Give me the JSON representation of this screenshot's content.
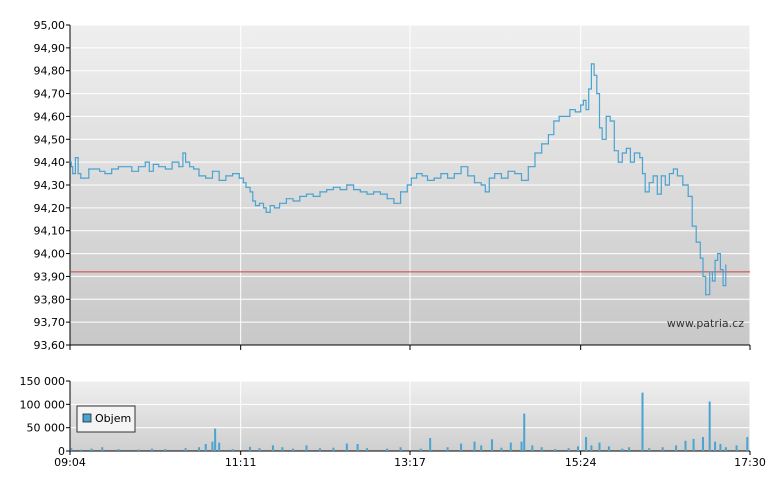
{
  "chart_data": [
    {
      "type": "line",
      "title": "",
      "xlabel": "",
      "ylabel": "",
      "ylim": [
        93.6,
        95.0
      ],
      "y_ticks": [
        "93,60",
        "93,70",
        "93,80",
        "93,90",
        "94,00",
        "94,10",
        "94,20",
        "94,30",
        "94,40",
        "94,50",
        "94,60",
        "94,70",
        "94,80",
        "94,90",
        "95,00"
      ],
      "y_tick_values": [
        93.6,
        93.7,
        93.8,
        93.9,
        94.0,
        94.1,
        94.2,
        94.3,
        94.4,
        94.5,
        94.6,
        94.7,
        94.8,
        94.9,
        95.0
      ],
      "reference_line": 93.92,
      "watermark": "www.patria.cz",
      "series": [
        {
          "color": "#4aa3d0",
          "points": [
            [
              "09:04",
              94.4
            ],
            [
              "09:05",
              94.38
            ],
            [
              "09:06",
              94.35
            ],
            [
              "09:08",
              94.42
            ],
            [
              "09:10",
              94.35
            ],
            [
              "09:12",
              94.33
            ],
            [
              "09:15",
              94.33
            ],
            [
              "09:18",
              94.37
            ],
            [
              "09:22",
              94.37
            ],
            [
              "09:26",
              94.36
            ],
            [
              "09:30",
              94.35
            ],
            [
              "09:35",
              94.37
            ],
            [
              "09:40",
              94.38
            ],
            [
              "09:45",
              94.38
            ],
            [
              "09:50",
              94.36
            ],
            [
              "09:55",
              94.38
            ],
            [
              "10:00",
              94.4
            ],
            [
              "10:03",
              94.36
            ],
            [
              "10:06",
              94.39
            ],
            [
              "10:10",
              94.38
            ],
            [
              "10:15",
              94.37
            ],
            [
              "10:20",
              94.4
            ],
            [
              "10:25",
              94.38
            ],
            [
              "10:28",
              94.44
            ],
            [
              "10:30",
              94.4
            ],
            [
              "10:33",
              94.38
            ],
            [
              "10:36",
              94.37
            ],
            [
              "10:40",
              94.34
            ],
            [
              "10:45",
              94.33
            ],
            [
              "10:50",
              94.36
            ],
            [
              "10:55",
              94.32
            ],
            [
              "11:00",
              94.34
            ],
            [
              "11:05",
              94.35
            ],
            [
              "11:10",
              94.33
            ],
            [
              "11:13",
              94.31
            ],
            [
              "11:15",
              94.29
            ],
            [
              "11:18",
              94.27
            ],
            [
              "11:20",
              94.23
            ],
            [
              "11:22",
              94.21
            ],
            [
              "11:25",
              94.22
            ],
            [
              "11:28",
              94.2
            ],
            [
              "11:30",
              94.18
            ],
            [
              "11:33",
              94.21
            ],
            [
              "11:36",
              94.2
            ],
            [
              "11:40",
              94.22
            ],
            [
              "11:45",
              94.24
            ],
            [
              "11:50",
              94.23
            ],
            [
              "11:55",
              94.25
            ],
            [
              "12:00",
              94.26
            ],
            [
              "12:05",
              94.25
            ],
            [
              "12:10",
              94.27
            ],
            [
              "12:15",
              94.28
            ],
            [
              "12:20",
              94.29
            ],
            [
              "12:25",
              94.28
            ],
            [
              "12:30",
              94.3
            ],
            [
              "12:35",
              94.28
            ],
            [
              "12:40",
              94.27
            ],
            [
              "12:45",
              94.26
            ],
            [
              "12:50",
              94.27
            ],
            [
              "12:55",
              94.26
            ],
            [
              "13:00",
              94.24
            ],
            [
              "13:05",
              94.22
            ],
            [
              "13:10",
              94.27
            ],
            [
              "13:15",
              94.3
            ],
            [
              "13:18",
              94.33
            ],
            [
              "13:22",
              94.35
            ],
            [
              "13:26",
              94.34
            ],
            [
              "13:30",
              94.32
            ],
            [
              "13:35",
              94.33
            ],
            [
              "13:40",
              94.35
            ],
            [
              "13:45",
              94.33
            ],
            [
              "13:50",
              94.35
            ],
            [
              "13:55",
              94.38
            ],
            [
              "14:00",
              94.34
            ],
            [
              "14:05",
              94.31
            ],
            [
              "14:10",
              94.3
            ],
            [
              "14:13",
              94.27
            ],
            [
              "14:16",
              94.33
            ],
            [
              "14:20",
              94.35
            ],
            [
              "14:25",
              94.33
            ],
            [
              "14:30",
              94.36
            ],
            [
              "14:35",
              94.35
            ],
            [
              "14:40",
              94.32
            ],
            [
              "14:45",
              94.38
            ],
            [
              "14:50",
              94.44
            ],
            [
              "14:55",
              94.48
            ],
            [
              "15:00",
              94.52
            ],
            [
              "15:04",
              94.58
            ],
            [
              "15:08",
              94.6
            ],
            [
              "15:12",
              94.6
            ],
            [
              "15:16",
              94.63
            ],
            [
              "15:20",
              94.62
            ],
            [
              "15:24",
              94.65
            ],
            [
              "15:26",
              94.67
            ],
            [
              "15:28",
              94.63
            ],
            [
              "15:30",
              94.72
            ],
            [
              "15:32",
              94.83
            ],
            [
              "15:34",
              94.78
            ],
            [
              "15:36",
              94.7
            ],
            [
              "15:38",
              94.55
            ],
            [
              "15:40",
              94.5
            ],
            [
              "15:43",
              94.6
            ],
            [
              "15:46",
              94.58
            ],
            [
              "15:49",
              94.45
            ],
            [
              "15:52",
              94.4
            ],
            [
              "15:55",
              94.44
            ],
            [
              "15:58",
              94.46
            ],
            [
              "16:01",
              94.4
            ],
            [
              "16:04",
              94.44
            ],
            [
              "16:08",
              94.42
            ],
            [
              "16:10",
              94.35
            ],
            [
              "16:12",
              94.27
            ],
            [
              "16:15",
              94.31
            ],
            [
              "16:18",
              94.34
            ],
            [
              "16:21",
              94.26
            ],
            [
              "16:24",
              94.34
            ],
            [
              "16:27",
              94.3
            ],
            [
              "16:30",
              94.35
            ],
            [
              "16:33",
              94.37
            ],
            [
              "16:36",
              94.34
            ],
            [
              "16:40",
              94.3
            ],
            [
              "16:44",
              94.25
            ],
            [
              "16:47",
              94.12
            ],
            [
              "16:50",
              94.05
            ],
            [
              "16:53",
              93.98
            ],
            [
              "16:55",
              93.9
            ],
            [
              "16:57",
              93.82
            ],
            [
              "17:00",
              93.92
            ],
            [
              "17:02",
              93.88
            ],
            [
              "17:04",
              93.97
            ],
            [
              "17:06",
              94.0
            ],
            [
              "17:08",
              93.93
            ],
            [
              "17:10",
              93.86
            ],
            [
              "17:12",
              93.95
            ]
          ]
        }
      ]
    },
    {
      "type": "bar",
      "title": "",
      "xlabel": "",
      "ylabel": "",
      "ylim": [
        0,
        150000
      ],
      "y_ticks": [
        "0",
        "50 000",
        "100 000",
        "150 000"
      ],
      "y_tick_values": [
        0,
        50000,
        100000,
        150000
      ],
      "legend": {
        "label": "Objem",
        "color": "#4aa3d0",
        "placement": "left"
      },
      "x_ticks": [
        "09:04",
        "11:11",
        "13:17",
        "15:24",
        "17:30"
      ],
      "series": [
        {
          "name": "Objem",
          "color": "#4aa3d0",
          "points": [
            [
              "09:05",
              6000
            ],
            [
              "09:12",
              3000
            ],
            [
              "09:20",
              5000
            ],
            [
              "09:28",
              8000
            ],
            [
              "09:40",
              4000
            ],
            [
              "09:55",
              3000
            ],
            [
              "10:05",
              5000
            ],
            [
              "10:15",
              4000
            ],
            [
              "10:30",
              6000
            ],
            [
              "10:40",
              8000
            ],
            [
              "10:45",
              15000
            ],
            [
              "10:50",
              20000
            ],
            [
              "10:52",
              48000
            ],
            [
              "10:55",
              18000
            ],
            [
              "11:05",
              4000
            ],
            [
              "11:18",
              9000
            ],
            [
              "11:25",
              6000
            ],
            [
              "11:35",
              12000
            ],
            [
              "11:42",
              8000
            ],
            [
              "11:50",
              5000
            ],
            [
              "12:00",
              12000
            ],
            [
              "12:10",
              6000
            ],
            [
              "12:20",
              7000
            ],
            [
              "12:30",
              16000
            ],
            [
              "12:38",
              15000
            ],
            [
              "12:45",
              6000
            ],
            [
              "13:00",
              5000
            ],
            [
              "13:10",
              8000
            ],
            [
              "13:25",
              5000
            ],
            [
              "13:32",
              28000
            ],
            [
              "13:45",
              8000
            ],
            [
              "13:55",
              16000
            ],
            [
              "14:05",
              20000
            ],
            [
              "14:10",
              12000
            ],
            [
              "14:18",
              25000
            ],
            [
              "14:25",
              7000
            ],
            [
              "14:32",
              18000
            ],
            [
              "14:40",
              20000
            ],
            [
              "14:42",
              80000
            ],
            [
              "14:48",
              12000
            ],
            [
              "14:55",
              8000
            ],
            [
              "15:05",
              4000
            ],
            [
              "15:15",
              6000
            ],
            [
              "15:22",
              10000
            ],
            [
              "15:28",
              30000
            ],
            [
              "15:32",
              12000
            ],
            [
              "15:38",
              18000
            ],
            [
              "15:45",
              10000
            ],
            [
              "15:55",
              5000
            ],
            [
              "16:00",
              8000
            ],
            [
              "16:10",
              125000
            ],
            [
              "16:15",
              6000
            ],
            [
              "16:25",
              8000
            ],
            [
              "16:35",
              12000
            ],
            [
              "16:42",
              22000
            ],
            [
              "16:48",
              26000
            ],
            [
              "16:55",
              30000
            ],
            [
              "17:00",
              106000
            ],
            [
              "17:04",
              20000
            ],
            [
              "17:08",
              15000
            ],
            [
              "17:12",
              8000
            ],
            [
              "17:20",
              12000
            ],
            [
              "17:28",
              30000
            ]
          ]
        }
      ]
    }
  ]
}
